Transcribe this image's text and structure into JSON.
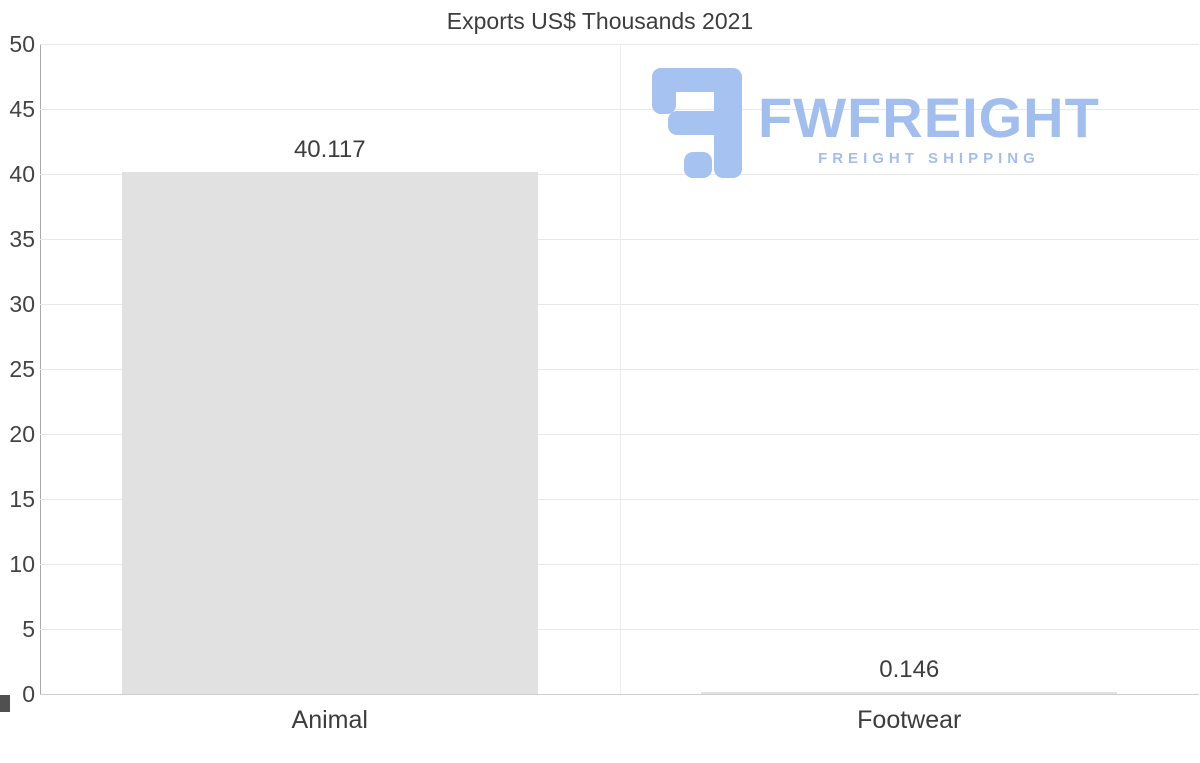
{
  "chart_data": {
    "type": "bar",
    "title": "Exports US$ Thousands 2021",
    "categories": [
      "Animal",
      "Footwear"
    ],
    "values": [
      40.117,
      0.146
    ],
    "value_labels": [
      "40.117",
      "0.146"
    ],
    "xlabel": "",
    "ylabel": "",
    "ylim": [
      0,
      50
    ],
    "yticks": [
      0,
      5,
      10,
      15,
      20,
      25,
      30,
      35,
      40,
      45,
      50
    ],
    "grid": true,
    "legend": "none",
    "bar_color": "#e1e1e1",
    "gridline_color": "#e8e8e8",
    "text_color": "#3d3d3d"
  },
  "logo": {
    "name": "FWFREIGHT",
    "tagline": "FREIGHT SHIPPING",
    "color": "#a2beee"
  }
}
